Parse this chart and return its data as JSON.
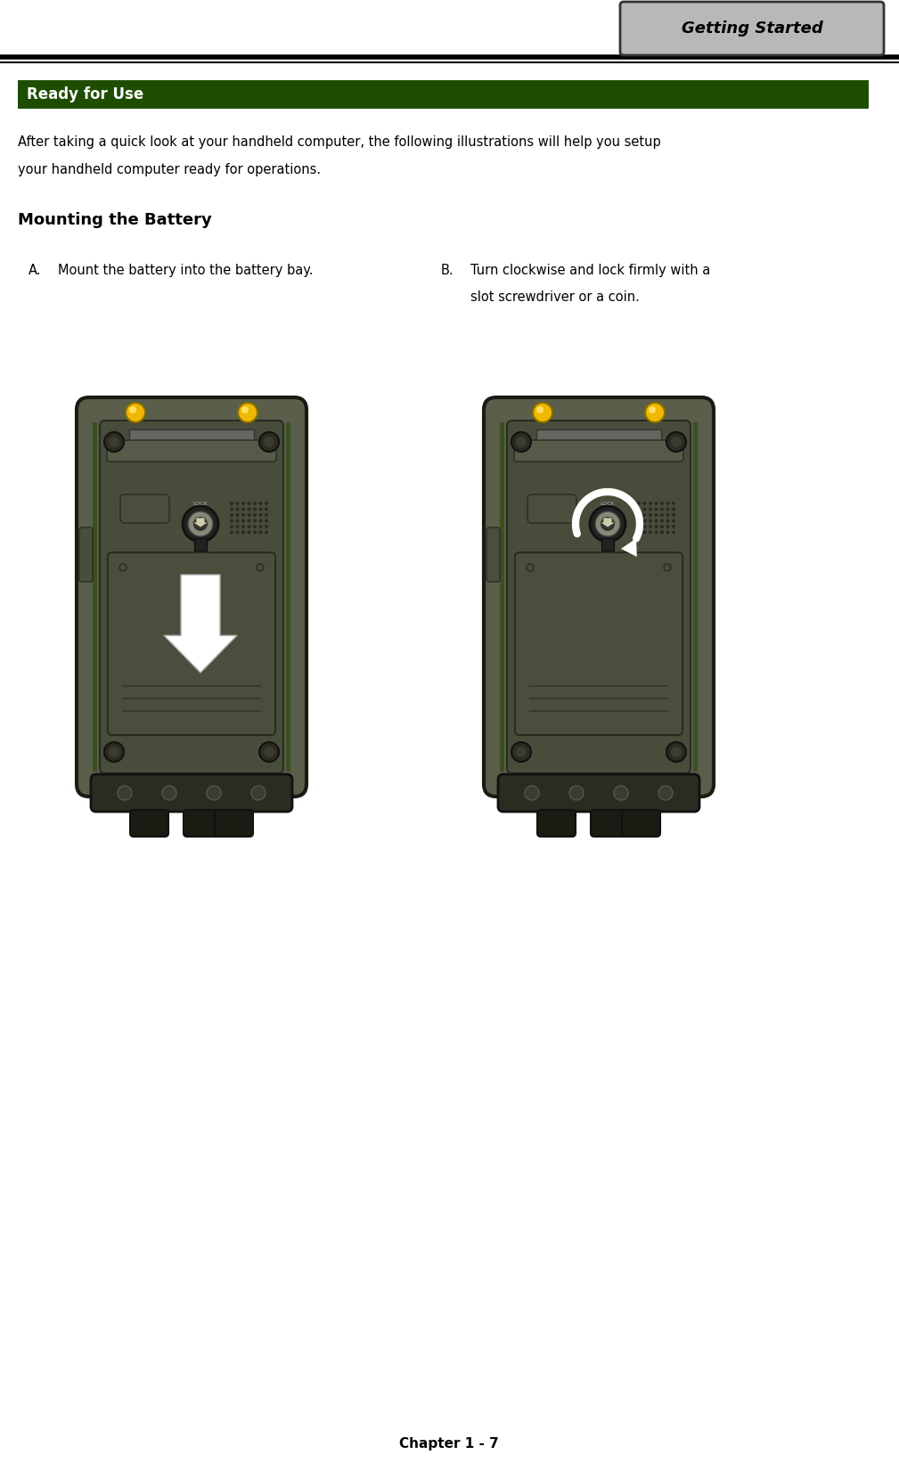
{
  "bg_color": "#ffffff",
  "header_tab_text": "Getting Started",
  "header_tab_bg": "#b8b8b8",
  "header_tab_border": "#333333",
  "section_bar_text": "Ready for Use",
  "section_bar_bg": "#1e4d00",
  "section_bar_text_color": "#ffffff",
  "body_text_line1": "After taking a quick look at your handheld computer, the following illustrations will help you setup",
  "body_text_line2": "your handheld computer ready for operations.",
  "section2_title": "Mounting the Battery",
  "item_a_label": "A.",
  "item_a_text": "Mount the battery into the battery bay.",
  "item_b_label": "B.",
  "item_b_text_line1": "Turn clockwise and lock firmly with a",
  "item_b_text_line2": "slot screwdriver or a coin.",
  "footer_text": "Chapter 1 - 7",
  "dev_body": "#5a5e4a",
  "dev_dark": "#1a1c14",
  "dev_green_edge": "#3a5020",
  "dev_mid": "#484c3a",
  "dev_panel": "#4a4e3c",
  "dev_panel_dark": "#404438",
  "dev_yellow": "#f0b800",
  "dev_screw_bg": "#2a2c22",
  "dev_gray": "#888878",
  "dev_lgray": "#6a6e5a",
  "dev_btn": "#505448"
}
